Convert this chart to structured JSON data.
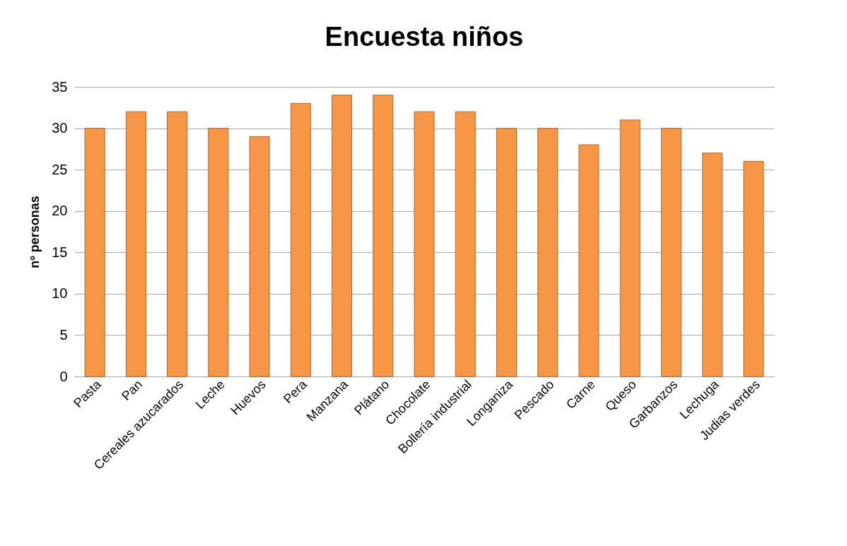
{
  "chart_data": {
    "type": "bar",
    "title": "Encuesta  niños",
    "ylabel": "nº personas",
    "categories": [
      "Pasta",
      "Pan",
      "Cereales azucarados",
      "Leche",
      "Huevos",
      "Pera",
      "Manzana",
      "Plátano",
      "Chocolate",
      "Bollería industrial",
      "Longaniza",
      "Pescado",
      "Carne",
      "Queso",
      "Garbanzos",
      "Lechuga",
      "Judias verdes"
    ],
    "values": [
      30,
      32,
      32,
      30,
      29,
      33,
      34,
      34,
      32,
      32,
      30,
      30,
      28,
      31,
      30,
      27,
      26
    ],
    "color": "#f79646",
    "ylim": [
      0,
      35
    ],
    "yticks": [
      0,
      5,
      10,
      15,
      20,
      25,
      30,
      35
    ],
    "grid": "y"
  }
}
